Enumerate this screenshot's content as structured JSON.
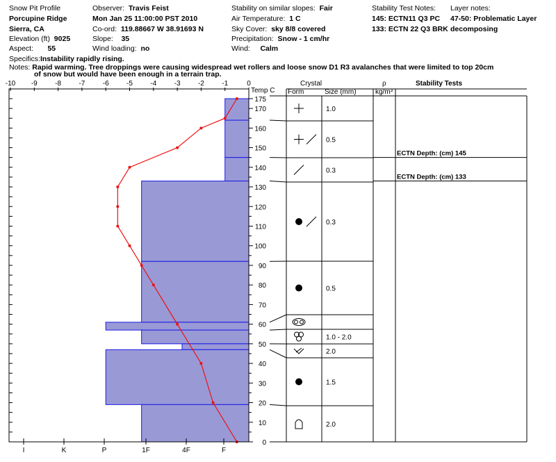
{
  "header": {
    "col1": [
      "Snow Pit Profile",
      "Porcupine Ridge",
      "Sierra, CA"
    ],
    "elevation_label": "Elevation (ft)",
    "elevation": "9025",
    "aspect_label": "Aspect:",
    "aspect": "55",
    "observer_label": "Observer:",
    "observer": "Travis Feist",
    "date": "Mon Jan 25 11:00:00 PST 2010",
    "coord_label": "Co-ord:",
    "coord": "119.88667 W 38.91693 N",
    "slope_label": "Slope:",
    "slope": "35",
    "wind_loading_label": "Wind loading:",
    "wind_loading": "no",
    "stability_label": "Stability on similar slopes:",
    "stability": "Fair",
    "air_temp_label": "Air Temperature:",
    "air_temp": "1 C",
    "sky_label": "Sky Cover:",
    "sky": "sky 8/8 covered",
    "precip_label": "Precipitation:",
    "precip": "Snow - 1 cm/hr",
    "wind_label": "Wind:",
    "wind": "Calm",
    "stn_title": "Stability Test Notes:",
    "stn1": "145: ECTN11 Q3 PC",
    "stn2": "133: ECTN 22 Q3 BRK",
    "ln_title": "Layer notes:",
    "ln1": "47-50: Problematic Layer",
    "ln2": "decomposing",
    "specifics_label": "Specifics:",
    "specifics": "Instability rapidly rising.",
    "notes_label": "Notes:",
    "notes": "Rapid warming. Tree droppings were causing widespread wet rollers and loose snow D1 R3 avalanches that were limited to top 20cm",
    "notes2": "of snow but would have been enough in a terrain trap."
  },
  "columns": {
    "temp": "Temp C",
    "crystal": "Crystal",
    "form": "Form",
    "size": "Size (mm)",
    "rho": "ρ",
    "rho_unit": "kg/m³",
    "stability": "Stability Tests"
  },
  "chart_data": {
    "type": "line",
    "x_temp_ticks": [
      -10,
      -9,
      -8,
      -7,
      -6,
      -5,
      -4,
      -3,
      -2,
      -1,
      0
    ],
    "x_hardness_ticks": [
      "I",
      "K",
      "P",
      "1F",
      "4F",
      "F"
    ],
    "y_ticks": [
      0,
      10,
      20,
      30,
      40,
      50,
      60,
      70,
      80,
      90,
      100,
      110,
      120,
      130,
      140,
      150,
      160,
      170,
      175
    ],
    "ylim": [
      0,
      175
    ],
    "temperature_profile": [
      {
        "height": 175,
        "temp": -0.5
      },
      {
        "height": 165,
        "temp": -1
      },
      {
        "height": 160,
        "temp": -2
      },
      {
        "height": 150,
        "temp": -3
      },
      {
        "height": 140,
        "temp": -5
      },
      {
        "height": 130,
        "temp": -5.5
      },
      {
        "height": 120,
        "temp": -5.5
      },
      {
        "height": 110,
        "temp": -5.5
      },
      {
        "height": 100,
        "temp": -5
      },
      {
        "height": 90,
        "temp": -4.5
      },
      {
        "height": 80,
        "temp": -4
      },
      {
        "height": 60,
        "temp": -3
      },
      {
        "height": 40,
        "temp": -2
      },
      {
        "height": 20,
        "temp": -1.5
      },
      {
        "height": 0,
        "temp": -0.5
      }
    ],
    "hardness_layers": [
      {
        "bottom": 164,
        "top": 175,
        "hardness_temp_scale": -1
      },
      {
        "bottom": 145,
        "top": 164,
        "hardness_temp_scale": -1
      },
      {
        "bottom": 133,
        "top": 145,
        "hardness_temp_scale": -1
      },
      {
        "bottom": 92,
        "top": 133,
        "hardness_temp_scale": -4.5
      },
      {
        "bottom": 61,
        "top": 92,
        "hardness_temp_scale": -4.5
      },
      {
        "bottom": 57,
        "top": 61,
        "hardness_temp_scale": -6
      },
      {
        "bottom": 50,
        "top": 57,
        "hardness_temp_scale": -4.5
      },
      {
        "bottom": 47,
        "top": 50,
        "hardness_temp_scale": -2.8
      },
      {
        "bottom": 19,
        "top": 47,
        "hardness_temp_scale": -6
      },
      {
        "bottom": 0,
        "top": 19,
        "hardness_temp_scale": -4.5
      }
    ],
    "crystal_layers": [
      {
        "bottom": 164,
        "top": 175,
        "forms": [
          "plus"
        ],
        "size": "1.0"
      },
      {
        "bottom": 145,
        "top": 164,
        "forms": [
          "plus",
          "slash"
        ],
        "size": "0.5"
      },
      {
        "bottom": 133,
        "top": 145,
        "forms": [
          "slash"
        ],
        "size": "0.3"
      },
      {
        "bottom": 92,
        "top": 133,
        "forms": [
          "dot",
          "slash"
        ],
        "size": "0.3"
      },
      {
        "bottom": 61,
        "top": 92,
        "forms": [
          "dot"
        ],
        "size": "0.5"
      },
      {
        "bottom": 57,
        "top": 61,
        "forms": [
          "doublering"
        ],
        "size": ""
      },
      {
        "bottom": 50,
        "top": 57,
        "forms": [
          "cluster"
        ],
        "size": "1.0 -  2.0"
      },
      {
        "bottom": 47,
        "top": 50,
        "forms": [
          "facet"
        ],
        "size": "2.0"
      },
      {
        "bottom": 19,
        "top": 47,
        "forms": [
          "dot"
        ],
        "size": "1.5"
      },
      {
        "bottom": 0,
        "top": 19,
        "forms": [
          "cup"
        ],
        "size": "2.0"
      }
    ],
    "stability_tests": [
      {
        "depth": 145,
        "label": "ECTN   Depth: (cm) 145"
      },
      {
        "depth": 133,
        "label": "ECTN   Depth: (cm) 133"
      }
    ],
    "colors": {
      "layer_fill": "#9999d6",
      "layer_border": "#1a1ae6",
      "temp_line": "#ee1111",
      "grid": "#000000"
    }
  }
}
